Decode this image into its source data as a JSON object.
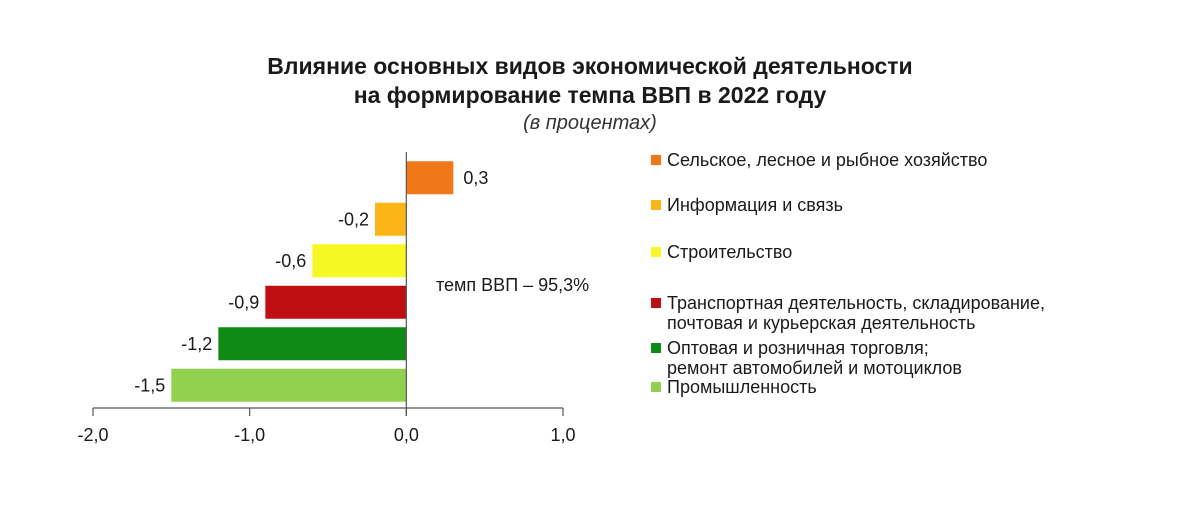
{
  "chart_data": {
    "type": "bar",
    "orientation": "horizontal",
    "title": "Влияние основных видов экономической деятельности на формирование темпа ВВП в 2022 году",
    "title_lines": [
      "Влияние основных видов экономической деятельности",
      "на формирование темпа ВВП в 2022 году"
    ],
    "subtitle": "(в процентах)",
    "annotation": "темп ВВП – 95,3%",
    "xlim": [
      -2.0,
      1.0
    ],
    "x_ticks": [
      -2.0,
      -1.0,
      0.0,
      1.0
    ],
    "x_tick_labels": [
      "-2,0",
      "-1,0",
      "0,0",
      "1,0"
    ],
    "grid": false,
    "legend_position": "right",
    "bars": [
      {
        "category": "Сельское, лесное и рыбное хозяйство",
        "legend_lines": [
          "Сельское, лесное и рыбное хозяйство"
        ],
        "value": 0.3,
        "label": "0,3",
        "color": "#f07818"
      },
      {
        "category": "Информация и связь",
        "legend_lines": [
          "Информация и связь"
        ],
        "value": -0.2,
        "label": "-0,2",
        "color": "#fbb517"
      },
      {
        "category": "Строительство",
        "legend_lines": [
          "Строительство"
        ],
        "value": -0.6,
        "label": "-0,6",
        "color": "#f7f724"
      },
      {
        "category": "Транспортная  деятельность, складирование, почтовая и курьерская деятельность",
        "legend_lines": [
          "Транспортная  деятельность, складирование,",
          "почтовая и курьерская деятельность"
        ],
        "value": -0.9,
        "label": "-0,9",
        "color": "#c00f12"
      },
      {
        "category": "Оптовая и розничная торговля; ремонт автомобилей и мотоциклов",
        "legend_lines": [
          "Оптовая и розничная торговля;",
          "ремонт автомобилей и мотоциклов"
        ],
        "value": -1.2,
        "label": "-1,2",
        "color": "#0f8a16"
      },
      {
        "category": "Промышленность",
        "legend_lines": [
          "Промышленность"
        ],
        "value": -1.5,
        "label": "-1,5",
        "color": "#92d050"
      }
    ]
  }
}
